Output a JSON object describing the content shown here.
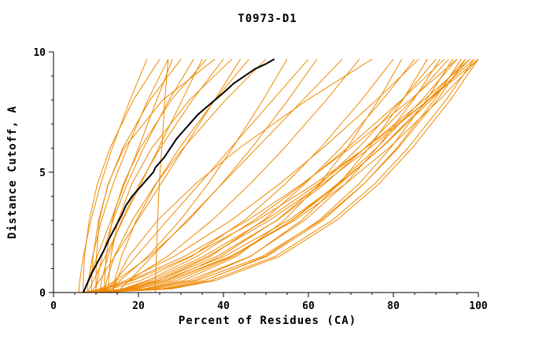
{
  "title": "T0973-D1",
  "colors": {
    "background": "#ffffff",
    "model_curve": "#ef8a00",
    "highlight_curve": "#000000",
    "axis": "#000000"
  },
  "chart_data": {
    "type": "line",
    "title": "T0973-D1",
    "xlabel": "Percent of Residues (CA)",
    "ylabel": "Distance Cutoff, A",
    "xlim": [
      0,
      100
    ],
    "ylim": [
      0,
      10
    ],
    "x_major_ticks": [
      0,
      20,
      40,
      60,
      80,
      100
    ],
    "x_minor_tick_step": 5,
    "y_major_ticks": [
      0,
      5,
      10
    ],
    "y_minor_tick_step": 1,
    "grid": false,
    "legend": "none",
    "description": "Cumulative distance-cutoff curves for many server models (orange) with one highlighted model (black); each curve gives percent of CA residues fitting under a distance cutoff.",
    "y_levels": [
      0,
      0.15,
      0.5,
      1.5,
      3,
      4.5,
      6,
      8,
      9.7
    ],
    "series_x": [
      [
        6,
        6.0,
        6.2,
        7.0,
        8.8,
        11.1,
        13.8,
        18.0,
        22
      ],
      [
        7,
        7.0,
        7.0,
        7.3,
        8.4,
        10.3,
        13.3,
        18.8,
        25
      ],
      [
        8,
        8.0,
        8.2,
        9.2,
        11.3,
        14.0,
        17.3,
        22.2,
        27
      ],
      [
        9,
        9.0,
        9.0,
        9.3,
        10.6,
        12.9,
        16.3,
        22.7,
        30
      ],
      [
        10,
        10.0,
        10.3,
        11.4,
        14.0,
        17.3,
        21.2,
        27.2,
        33
      ],
      [
        8,
        8.4,
        9.4,
        12.2,
        16.3,
        20.5,
        24.7,
        30.3,
        35
      ],
      [
        12,
        12.0,
        12.0,
        12.4,
        13.8,
        16.4,
        20.4,
        27.7,
        36
      ],
      [
        11,
        11.1,
        11.3,
        12.8,
        16.0,
        20.2,
        25.1,
        32.7,
        40
      ],
      [
        13,
        13.0,
        13.0,
        13.5,
        15.2,
        18.4,
        23.1,
        32.0,
        42
      ],
      [
        9,
        9.5,
        10.8,
        14.4,
        19.8,
        25.2,
        30.7,
        37.9,
        44
      ],
      [
        14,
        14.1,
        14.4,
        16.0,
        19.5,
        24.1,
        29.6,
        38.0,
        46
      ],
      [
        10,
        10.0,
        10.0,
        10.1,
        10.8,
        12.8,
        16.6,
        25.7,
        38
      ],
      [
        7,
        7.3,
        8.1,
        10.3,
        13.5,
        16.7,
        20.0,
        24.3,
        28
      ],
      [
        12,
        12.1,
        12.5,
        14.3,
        18.5,
        24.0,
        30.5,
        40.5,
        50
      ],
      [
        24,
        24.0,
        24.0,
        24.2,
        24.5,
        24.9,
        25.5,
        26.2,
        27
      ],
      [
        10,
        12.4,
        15.7,
        22.2,
        29.8,
        36.3,
        42.1,
        49.3,
        55
      ],
      [
        12,
        12.7,
        14.5,
        19.4,
        26.8,
        34.3,
        41.7,
        51.6,
        60
      ],
      [
        8,
        10.9,
        14.8,
        22.6,
        31.8,
        39.5,
        46.6,
        55.2,
        62
      ],
      [
        15,
        15.8,
        17.8,
        23.2,
        31.4,
        39.6,
        47.8,
        58.7,
        68
      ],
      [
        10,
        13.3,
        17.8,
        26.8,
        37.3,
        46.2,
        54.3,
        64.2,
        72
      ],
      [
        14,
        14.1,
        14.7,
        17.7,
        24.5,
        33.3,
        43.7,
        59.7,
        75
      ],
      [
        6,
        13.5,
        20.5,
        32.5,
        44.9,
        54.5,
        62.8,
        72.5,
        80
      ],
      [
        8,
        22.0,
        30.6,
        43.1,
        54.3,
        62.5,
        69.1,
        76.5,
        82
      ],
      [
        10,
        17.6,
        24.7,
        36.9,
        49.4,
        59.1,
        67.6,
        77.4,
        85
      ],
      [
        7,
        11.3,
        17.0,
        28.4,
        41.8,
        53.1,
        63.4,
        76.0,
        86
      ],
      [
        9,
        23.9,
        33.1,
        46.4,
        58.4,
        67.1,
        74.2,
        82.2,
        88
      ],
      [
        11,
        19.0,
        26.5,
        39.3,
        52.5,
        62.7,
        71.7,
        82.0,
        90
      ],
      [
        6,
        22.1,
        31.9,
        46.3,
        59.1,
        68.6,
        76.1,
        84.7,
        91
      ],
      [
        12,
        16.3,
        22.1,
        33.7,
        47.2,
        58.7,
        69.1,
        81.9,
        92
      ],
      [
        8,
        16.6,
        24.7,
        38.4,
        52.6,
        63.7,
        73.3,
        84.4,
        93
      ],
      [
        10,
        25.9,
        35.6,
        49.8,
        62.5,
        71.8,
        79.3,
        87.8,
        94
      ],
      [
        13,
        21.3,
        29.1,
        42.4,
        56.1,
        66.7,
        76.0,
        86.7,
        95
      ],
      [
        7,
        11.8,
        18.1,
        30.8,
        45.7,
        58.4,
        69.8,
        83.9,
        95
      ],
      [
        9,
        25.4,
        35.5,
        50.2,
        63.4,
        73.0,
        80.8,
        89.6,
        96
      ],
      [
        11,
        19.7,
        27.9,
        41.8,
        56.2,
        67.3,
        77.0,
        88.3,
        97
      ],
      [
        6,
        23.2,
        33.8,
        49.1,
        62.9,
        73.0,
        81.1,
        90.3,
        97
      ],
      [
        12,
        16.6,
        22.8,
        35.3,
        49.8,
        62.2,
        73.4,
        87.2,
        98
      ],
      [
        8,
        17.1,
        25.6,
        40.2,
        55.3,
        67.0,
        77.1,
        88.9,
        98
      ],
      [
        10,
        26.8,
        37.1,
        52.2,
        65.6,
        75.5,
        83.4,
        92.4,
        99
      ],
      [
        13,
        17.6,
        23.8,
        36.3,
        50.8,
        63.2,
        74.4,
        88.2,
        99
      ],
      [
        9,
        18.2,
        26.8,
        41.6,
        56.8,
        68.6,
        78.9,
        90.8,
        100
      ],
      [
        11,
        27.8,
        38.1,
        53.2,
        66.6,
        76.5,
        84.4,
        93.4,
        100
      ],
      [
        7,
        12.0,
        18.7,
        32.2,
        47.9,
        61.3,
        73.4,
        88.3,
        100
      ]
    ],
    "highlight_series": {
      "points": [
        [
          7,
          0
        ],
        [
          8,
          0.4
        ],
        [
          9,
          0.8
        ],
        [
          10.5,
          1.3
        ],
        [
          12,
          1.8
        ],
        [
          13,
          2.2
        ],
        [
          14.5,
          2.7
        ],
        [
          16,
          3.2
        ],
        [
          17,
          3.6
        ],
        [
          18.5,
          4.0
        ],
        [
          20,
          4.3
        ],
        [
          22,
          4.7
        ],
        [
          23.5,
          5.0
        ],
        [
          24,
          5.2
        ],
        [
          26,
          5.6
        ],
        [
          27.5,
          6.0
        ],
        [
          29,
          6.4
        ],
        [
          30.5,
          6.7
        ],
        [
          32,
          7.0
        ],
        [
          34,
          7.4
        ],
        [
          36,
          7.7
        ],
        [
          38,
          8.0
        ],
        [
          40,
          8.3
        ],
        [
          42.5,
          8.7
        ],
        [
          45,
          9.0
        ],
        [
          47.5,
          9.3
        ],
        [
          50,
          9.5
        ],
        [
          52,
          9.7
        ]
      ]
    }
  }
}
